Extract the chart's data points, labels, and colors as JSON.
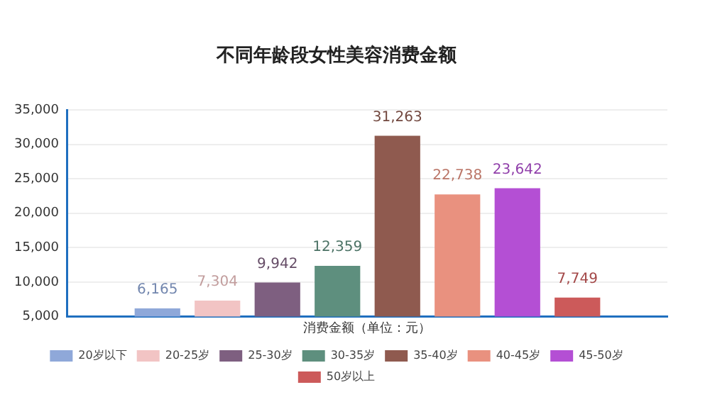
{
  "chart_data": {
    "type": "bar",
    "title": "不同年龄段女性美容消费金额",
    "categories": [
      "消费金额（单位：元）"
    ],
    "series": [
      {
        "name": "20岁以下",
        "color": "#8fa8d9",
        "values": [
          6165
        ],
        "value_labels": [
          "6,165"
        ]
      },
      {
        "name": "20-25岁",
        "color": "#f2c4c4",
        "values": [
          7304
        ],
        "value_labels": [
          "7,304"
        ]
      },
      {
        "name": "25-30岁",
        "color": "#7e5f80",
        "values": [
          9942
        ],
        "value_labels": [
          "9,942"
        ]
      },
      {
        "name": "30-35岁",
        "color": "#5e8f7e",
        "values": [
          12359
        ],
        "value_labels": [
          "12,359"
        ]
      },
      {
        "name": "35-40岁",
        "color": "#8f5a4f",
        "values": [
          31263
        ],
        "value_labels": [
          "31,263"
        ]
      },
      {
        "name": "40-45岁",
        "color": "#e9917f",
        "values": [
          22738
        ],
        "value_labels": [
          "22,738"
        ]
      },
      {
        "name": "45-50岁",
        "color": "#b44fd4",
        "values": [
          23642
        ],
        "value_labels": [
          "23,642"
        ]
      },
      {
        "name": "50岁以上",
        "color": "#cc5a5a",
        "values": [
          7749
        ],
        "value_labels": [
          "7,749"
        ]
      }
    ],
    "ylim": [
      5000,
      35000
    ],
    "yticks": [
      {
        "value": 5000,
        "label": "5,000"
      },
      {
        "value": 10000,
        "label": "10,000"
      },
      {
        "value": 15000,
        "label": "15,000"
      },
      {
        "value": 20000,
        "label": "20,000"
      },
      {
        "value": 25000,
        "label": "25,000"
      },
      {
        "value": 30000,
        "label": "30,000"
      },
      {
        "value": 35000,
        "label": "35,000"
      }
    ],
    "grid": "y",
    "legend": "bottom"
  }
}
